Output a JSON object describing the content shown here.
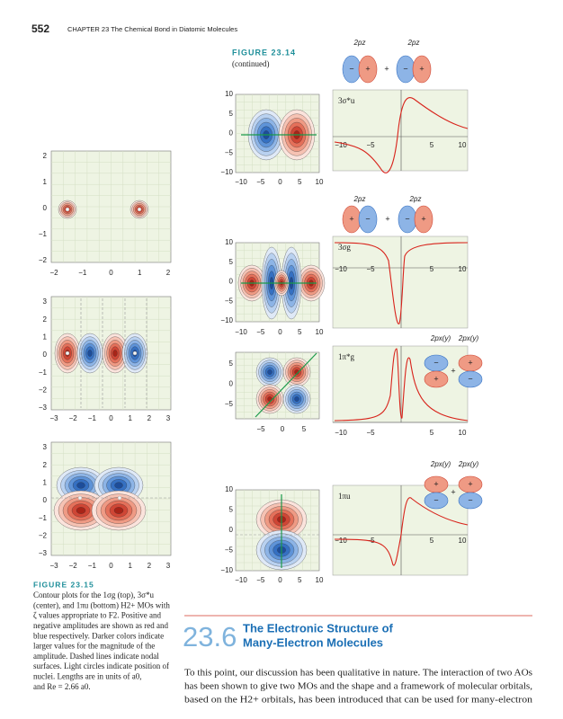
{
  "header": {
    "page_number": "552",
    "running_head": "CHAPTER 23 The Chemical Bond in Diatomic Molecules"
  },
  "figure_23_15": {
    "label": "FIGURE 23.15",
    "caption_lines": [
      "Contour plots for the 1σg (top), 3σ*u",
      "(center), and 1πu (bottom) H2+ MOs with",
      "ζ values appropriate to F2. Positive and",
      "negative amplitudes are shown as red and",
      "blue respectively. Darker colors indicate",
      "larger values for the magnitude of the",
      "amplitude. Dashed lines indicate nodal",
      "surfaces. Light circles indicate position of",
      "nuclei. Lengths are in units of a0,",
      "and Re = 2.66 a0."
    ],
    "panels": [
      {
        "y_ticks": [
          "2",
          "1",
          "0",
          "−1",
          "−2"
        ],
        "x_ticks": [
          "−2",
          "−1",
          "0",
          "1",
          "2"
        ]
      },
      {
        "y_ticks": [
          "3",
          "2",
          "1",
          "0",
          "−1",
          "−2",
          "−3"
        ],
        "x_ticks": [
          "−3",
          "−2",
          "−1",
          "0",
          "1",
          "2",
          "3"
        ]
      },
      {
        "y_ticks": [
          "3",
          "2",
          "1",
          "0",
          "−1",
          "−2",
          "−3"
        ],
        "x_ticks": [
          "−3",
          "−2",
          "−1",
          "0",
          "1",
          "2",
          "3"
        ]
      }
    ]
  },
  "figure_23_14": {
    "label": "FIGURE 23.14",
    "sublabel": "(continued)",
    "rows": [
      {
        "contour_y_ticks": [
          "10",
          "5",
          "0",
          "−5",
          "−10"
        ],
        "contour_x_ticks": [
          "−10",
          "−5",
          "0",
          "5",
          "10"
        ],
        "mo_label": "3σ*u",
        "line_x_ticks": [
          "−10",
          "−5",
          "5",
          "10"
        ],
        "ao_labels": [
          "2pz",
          "2pz"
        ],
        "ao_signs": [
          "−",
          "+",
          "+",
          "−",
          "+"
        ]
      },
      {
        "contour_y_ticks": [
          "10",
          "5",
          "0",
          "−5",
          "−10"
        ],
        "contour_x_ticks": [
          "−10",
          "−5",
          "0",
          "5",
          "10"
        ],
        "mo_label": "3σg",
        "line_x_ticks": [
          "−10",
          "−5",
          "5",
          "10"
        ],
        "ao_labels": [
          "2pz",
          "2pz"
        ],
        "ao_signs": [
          "+",
          "−",
          "+",
          "−",
          "+"
        ]
      },
      {
        "contour_y_ticks": [
          "5",
          "0",
          "−5"
        ],
        "contour_x_ticks": [
          "−5",
          "0",
          "5"
        ],
        "mo_label": "1π*g",
        "line_x_ticks": [
          "−10",
          "−5",
          "5",
          "10"
        ],
        "ao_labels": [
          "2px(y)",
          "2px(y)"
        ],
        "ao_signs": [
          "−",
          "+",
          "+",
          "+",
          "−"
        ]
      },
      {
        "contour_y_ticks": [
          "10",
          "5",
          "0",
          "−5",
          "−10"
        ],
        "contour_x_ticks": [
          "−10",
          "−5",
          "0",
          "5",
          "10"
        ],
        "mo_label": "1πu",
        "line_x_ticks": [
          "−10",
          "−5",
          "5",
          "10"
        ],
        "ao_labels": [
          "2px(y)",
          "2px(y)"
        ],
        "ao_signs": [
          "+",
          "−",
          "+",
          "+",
          "−"
        ]
      }
    ]
  },
  "section": {
    "number": "23.6",
    "title_lines": [
      "The Electronic Structure of",
      "Many-Electron Molecules"
    ],
    "body_lines": [
      "To this point, our discussion has been qualitative in nature. The interaction of two AOs",
      "has been shown to give two MOs and the shape and a framework of molecular orbitals,",
      "based on the H2+ orbitals, has been introduced that can be used for many-electron"
    ]
  }
}
